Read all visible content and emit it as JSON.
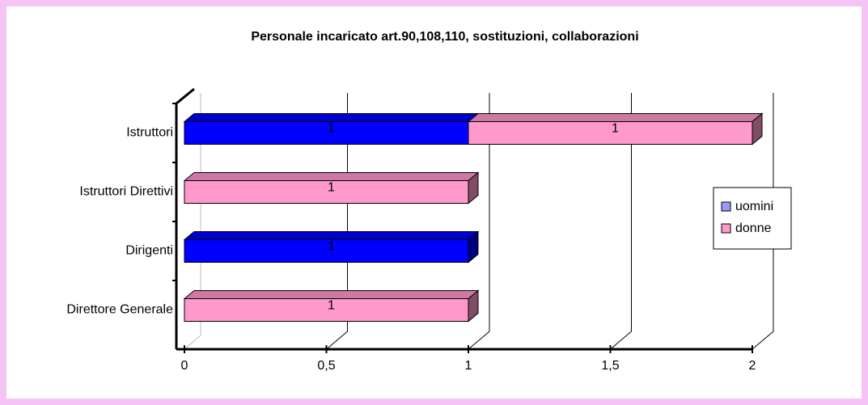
{
  "chart_data": {
    "type": "bar",
    "orientation": "horizontal",
    "stacked": true,
    "title": "Personale incaricato art.90,108,110, sostituzioni, collaborazioni",
    "categories": [
      "Istruttori",
      "Istruttori Direttivi",
      "Dirigenti",
      "Direttore Generale"
    ],
    "series": [
      {
        "name": "uomini",
        "color": "#0000ff",
        "values": [
          1,
          null,
          1,
          null
        ]
      },
      {
        "name": "donne",
        "color": "#ff99cc",
        "values": [
          1,
          1,
          null,
          1
        ]
      }
    ],
    "xlim": [
      0,
      2
    ],
    "xticks": [
      0,
      {
        "value": 0.5,
        "label": "0,5"
      },
      1,
      {
        "value": 1.5,
        "label": "1,5"
      },
      2
    ],
    "grid": true,
    "legend": "right"
  }
}
